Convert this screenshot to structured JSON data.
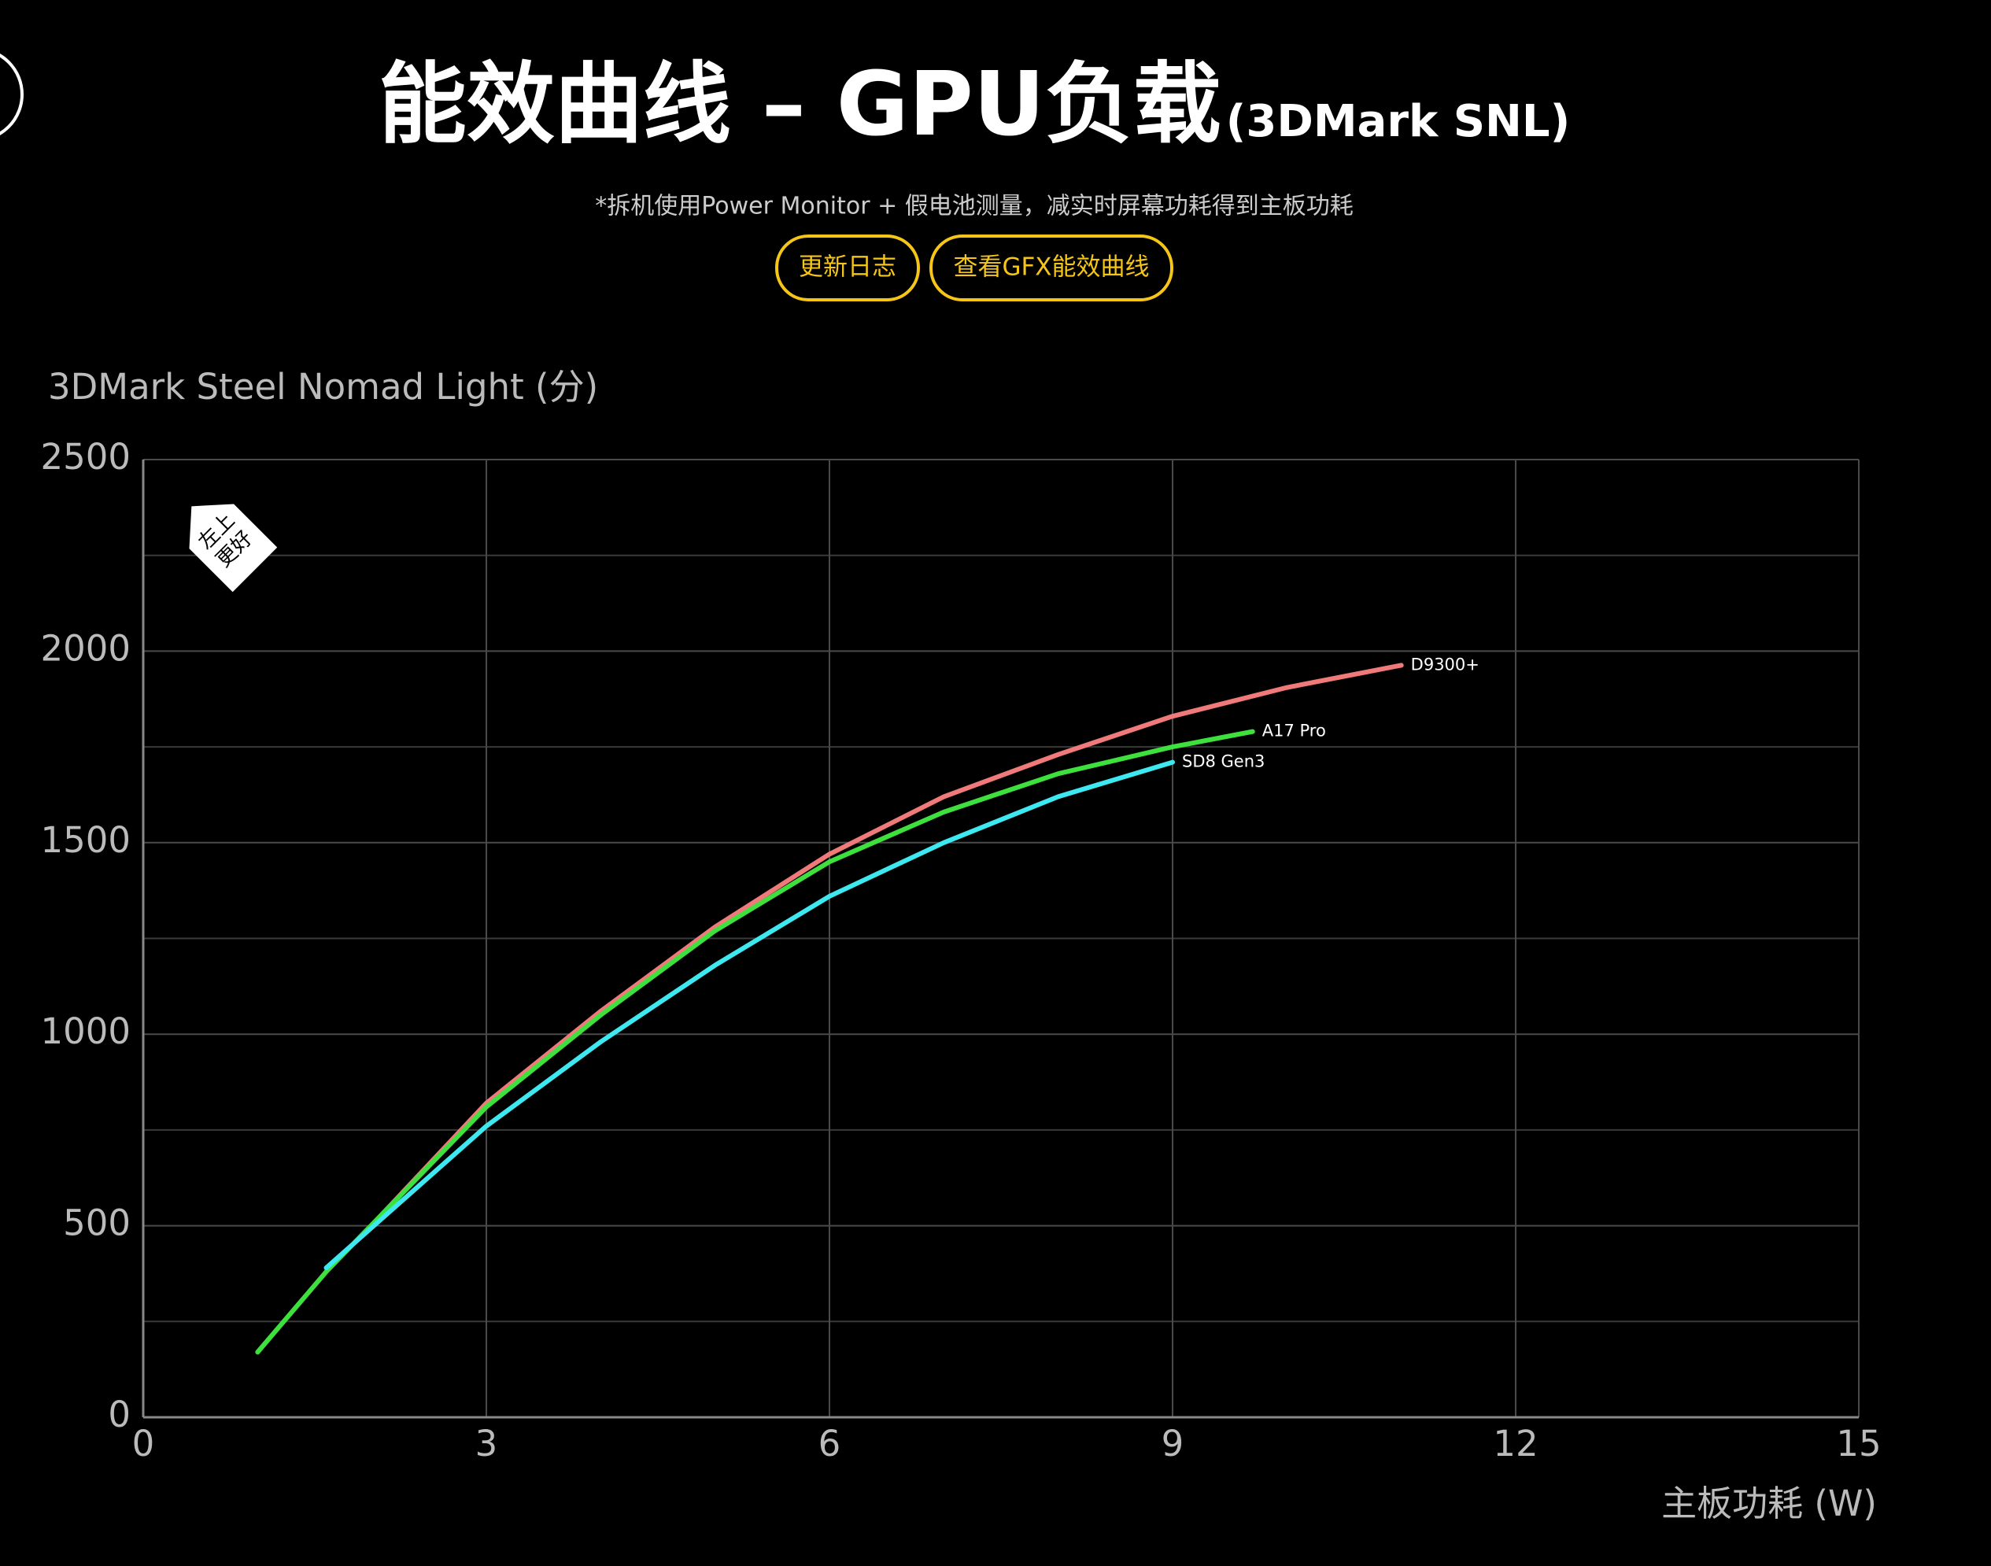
{
  "chart_data": {
    "type": "line",
    "title": "能效曲线 – GPU负载",
    "title_suffix": "(3DMark SNL)",
    "subtitle": "*拆机使用Power Monitor + 假电池测量，减实时屏幕功耗得到主板功耗",
    "buttons": [
      "更新日志",
      "查看GFX能效曲线"
    ],
    "annotations": [
      "左上",
      "更好"
    ],
    "y_label": "3DMark Steel Nomad Light (分)",
    "x_label": "主板功耗 (W)",
    "xlim": [
      0,
      15
    ],
    "xticks": [
      0,
      3,
      6,
      9,
      12,
      15
    ],
    "ylim": [
      0,
      2500
    ],
    "yticks": [
      0,
      500,
      1000,
      1500,
      2000,
      2500
    ],
    "minor_yticks": [
      250,
      750,
      1250,
      1750,
      2250
    ],
    "grid": true,
    "series": [
      {
        "name": "D9300+",
        "color": "#f07a7a",
        "x": [
          1.9,
          3,
          4,
          5,
          6,
          7,
          8,
          9,
          10,
          11
        ],
        "values": [
          470,
          820,
          1060,
          1280,
          1470,
          1620,
          1730,
          1830,
          1905,
          1963
        ]
      },
      {
        "name": "A17 Pro",
        "color": "#3ee03e",
        "x": [
          1.0,
          1.6,
          3,
          4,
          5,
          6,
          7,
          8,
          9,
          9.7
        ],
        "values": [
          170,
          380,
          810,
          1050,
          1270,
          1450,
          1580,
          1680,
          1750,
          1790
        ]
      },
      {
        "name": "SD8 Gen3",
        "color": "#3ee8f0",
        "x": [
          1.6,
          3,
          4,
          5,
          6,
          7,
          8,
          9
        ],
        "values": [
          390,
          760,
          980,
          1180,
          1360,
          1500,
          1620,
          1710
        ]
      }
    ]
  }
}
